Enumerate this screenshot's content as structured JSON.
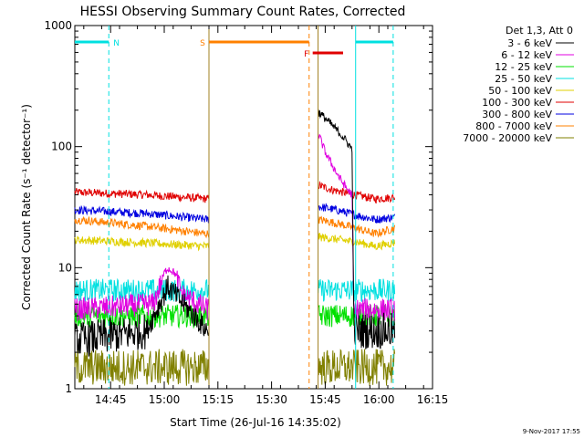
{
  "chart_data": {
    "type": "line",
    "title": "HESSI Observing Summary Count Rates, Corrected",
    "xlabel": "Start Time (26-Jul-16 14:35:02)",
    "ylabel": "Corrected Count Rate (s⁻¹ detector⁻¹)",
    "y_scale": "log",
    "ylim": [
      1,
      1000
    ],
    "xlim_minutes_after_1435": [
      0,
      100
    ],
    "x_ticks": [
      {
        "label": "14:45",
        "min": 10
      },
      {
        "label": "15:00",
        "min": 25
      },
      {
        "label": "15:15",
        "min": 40
      },
      {
        "label": "15:30",
        "min": 55
      },
      {
        "label": "15:45",
        "min": 70
      },
      {
        "label": "16:00",
        "min": 85
      },
      {
        "label": "16:15",
        "min": 100
      }
    ],
    "y_ticks": [
      {
        "label": "1",
        "value": 1
      },
      {
        "label": "10",
        "value": 10
      },
      {
        "label": "100",
        "value": 100
      },
      {
        "label": "1000",
        "value": 1000
      }
    ],
    "legend": {
      "header": "Det 1,3, Att 0",
      "placement": "right",
      "entries": [
        {
          "label": "3 - 6 keV",
          "color": "#000000"
        },
        {
          "label": "6 - 12 keV",
          "color": "#e000e0"
        },
        {
          "label": "12 - 25 keV",
          "color": "#00e000"
        },
        {
          "label": "25 - 50 keV",
          "color": "#00e0e0"
        },
        {
          "label": "50 - 100 keV",
          "color": "#e0d000"
        },
        {
          "label": "100 - 300 keV",
          "color": "#e00000"
        },
        {
          "label": "300 - 800 keV",
          "color": "#0000e0"
        },
        {
          "label": "800 - 7000 keV",
          "color": "#ff8000"
        },
        {
          "label": "7000 - 20000 keV",
          "color": "#808000"
        }
      ]
    },
    "orbit_markers": [
      {
        "flag": "N",
        "from_min": 0,
        "to_min": 9.5,
        "color": "#00e0e0"
      },
      {
        "flag": "S",
        "from_min": 37.5,
        "to_min": 65.5,
        "color": "#ff8000"
      },
      {
        "flag": "F",
        "from_min": 66.5,
        "to_min": 75,
        "color": "#e00000"
      },
      {
        "flag": "",
        "from_min": 78.5,
        "to_min": 89,
        "color": "#00e0e0"
      }
    ],
    "boundaries": [
      {
        "min": 9.5,
        "style": "dashed",
        "color": "#00e0e0"
      },
      {
        "min": 37.5,
        "style": "solid",
        "color": "#a08020"
      },
      {
        "min": 65.5,
        "style": "dashed",
        "color": "#ff8000"
      },
      {
        "min": 68.0,
        "style": "solid",
        "color": "#a08020"
      },
      {
        "min": 78.5,
        "style": "solid",
        "color": "#00e0e0"
      },
      {
        "min": 89.0,
        "style": "dashed",
        "color": "#00e0e0"
      }
    ],
    "data_segments": [
      {
        "from_min": 0,
        "to_min": 37.5
      },
      {
        "from_min": 68.0,
        "to_min": 89.5
      }
    ],
    "series": [
      {
        "name": "100 - 300 keV",
        "color": "#e00000",
        "points": [
          [
            0,
            42
          ],
          [
            20,
            40
          ],
          [
            37,
            37
          ],
          [
            68,
            48
          ],
          [
            72,
            44
          ],
          [
            78,
            40
          ],
          [
            84,
            37
          ],
          [
            89,
            38
          ]
        ]
      },
      {
        "name": "300 - 800 keV",
        "color": "#0000e0",
        "points": [
          [
            0,
            30
          ],
          [
            20,
            28
          ],
          [
            37,
            25
          ],
          [
            68,
            32
          ],
          [
            73,
            30
          ],
          [
            79,
            27
          ],
          [
            84,
            25
          ],
          [
            89,
            26
          ]
        ]
      },
      {
        "name": "800 - 7000 keV",
        "color": "#ff8000",
        "points": [
          [
            0,
            25
          ],
          [
            20,
            22
          ],
          [
            37,
            19
          ],
          [
            68,
            25
          ],
          [
            74,
            23
          ],
          [
            79,
            21
          ],
          [
            84,
            19
          ],
          [
            89,
            21
          ]
        ]
      },
      {
        "name": "50 - 100 keV",
        "color": "#e0d000",
        "points": [
          [
            0,
            17
          ],
          [
            20,
            16
          ],
          [
            37,
            15
          ],
          [
            68,
            18
          ],
          [
            74,
            17
          ],
          [
            80,
            16
          ],
          [
            84,
            15
          ],
          [
            89,
            16
          ]
        ]
      },
      {
        "name": "25 - 50 keV",
        "color": "#00e0e0",
        "points": [
          [
            0,
            6.5
          ],
          [
            37,
            6.5
          ],
          [
            68,
            6.5
          ],
          [
            89,
            6.5
          ]
        ]
      },
      {
        "name": "12 - 25 keV",
        "color": "#00e000",
        "points": [
          [
            0,
            4
          ],
          [
            37,
            4
          ],
          [
            68,
            4
          ],
          [
            89,
            4
          ]
        ]
      },
      {
        "name": "6 - 12 keV",
        "color": "#e000e0",
        "points": [
          [
            0,
            4.5
          ],
          [
            22,
            5
          ],
          [
            25,
            9
          ],
          [
            26,
            10
          ],
          [
            28,
            9
          ],
          [
            30,
            6
          ],
          [
            37,
            4.5
          ],
          [
            68,
            130
          ],
          [
            70,
            90
          ],
          [
            72,
            70
          ],
          [
            74,
            55
          ],
          [
            76,
            45
          ],
          [
            77.5,
            40
          ],
          [
            78,
            4
          ],
          [
            78.5,
            4.5
          ],
          [
            89,
            4.5
          ]
        ]
      },
      {
        "name": "3 - 6 keV",
        "color": "#000000",
        "points": [
          [
            0,
            2.5
          ],
          [
            20,
            3
          ],
          [
            25,
            6
          ],
          [
            26,
            7
          ],
          [
            28,
            6
          ],
          [
            37,
            3
          ],
          [
            68,
            195
          ],
          [
            71,
            160
          ],
          [
            74,
            130
          ],
          [
            76,
            110
          ],
          [
            77.5,
            95
          ],
          [
            78,
            3
          ],
          [
            89,
            3
          ]
        ]
      },
      {
        "name": "7000 - 20000 keV",
        "color": "#808000",
        "points": [
          [
            0,
            1.5
          ],
          [
            37,
            1.5
          ],
          [
            68,
            1.5
          ],
          [
            89,
            1.5
          ]
        ]
      }
    ]
  },
  "footer": {
    "timestamp": "9-Nov-2017 17:55"
  }
}
